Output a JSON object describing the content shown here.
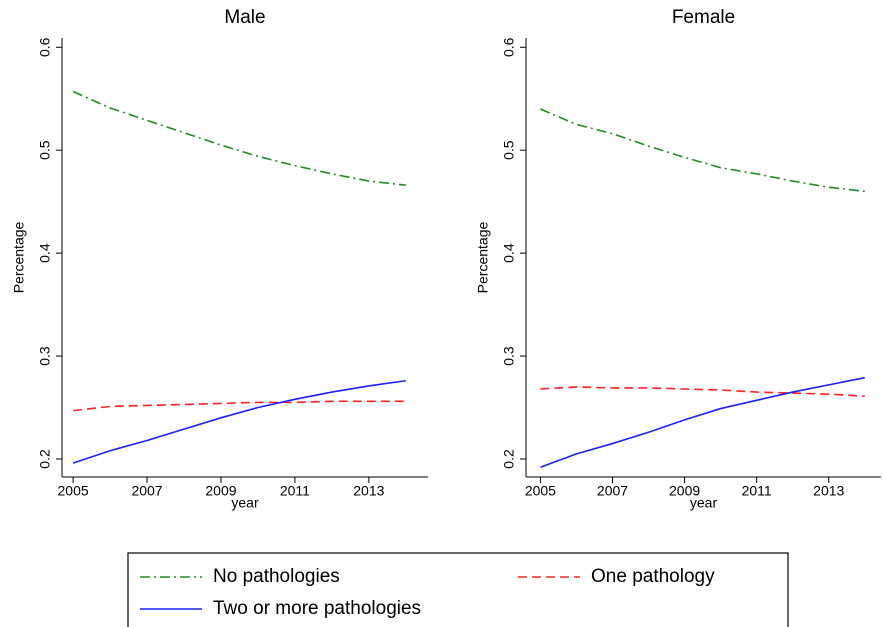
{
  "chart_data": [
    {
      "type": "line",
      "title": "Male",
      "xlabel": "year",
      "ylabel": "Percentage",
      "x": [
        2005,
        2006,
        2007,
        2008,
        2009,
        2010,
        2011,
        2012,
        2013,
        2014
      ],
      "xlim": [
        2004.7,
        2014.6
      ],
      "xticks": [
        2005,
        2007,
        2009,
        2011,
        2013
      ],
      "ylim": [
        0.1825,
        0.609
      ],
      "yticks": [
        0.2,
        0.3,
        0.4,
        0.5,
        0.6
      ],
      "series": [
        {
          "name": "No pathologies",
          "color": "#228b22",
          "dash": "dashdot",
          "values": [
            0.557,
            0.541,
            0.529,
            0.517,
            0.505,
            0.494,
            0.485,
            0.477,
            0.47,
            0.466
          ]
        },
        {
          "name": "One pathology",
          "color": "#ff2020",
          "dash": "dash",
          "values": [
            0.247,
            0.251,
            0.252,
            0.253,
            0.254,
            0.255,
            0.255,
            0.256,
            0.256,
            0.256
          ]
        },
        {
          "name": "Two or more pathologies",
          "color": "#1f1fff",
          "dash": "solid",
          "values": [
            0.196,
            0.208,
            0.218,
            0.229,
            0.24,
            0.25,
            0.258,
            0.265,
            0.271,
            0.276
          ]
        }
      ]
    },
    {
      "type": "line",
      "title": "Female",
      "xlabel": "year",
      "ylabel": "Percentage",
      "x": [
        2005,
        2006,
        2007,
        2008,
        2009,
        2010,
        2011,
        2012,
        2013,
        2014
      ],
      "xlim": [
        2004.6,
        2014.45
      ],
      "xticks": [
        2005,
        2007,
        2009,
        2011,
        2013
      ],
      "ylim": [
        0.1825,
        0.609
      ],
      "yticks": [
        0.2,
        0.3,
        0.4,
        0.5,
        0.6
      ],
      "series": [
        {
          "color": "#228b22",
          "dash": "dashdot",
          "values": [
            0.54,
            0.525,
            0.516,
            0.504,
            0.493,
            0.483,
            0.477,
            0.47,
            0.464,
            0.46
          ]
        },
        {
          "color": "#ff2020",
          "dash": "dash",
          "values": [
            0.268,
            0.27,
            0.269,
            0.269,
            0.268,
            0.267,
            0.265,
            0.264,
            0.263,
            0.261
          ]
        },
        {
          "color": "#1f1fff",
          "dash": "solid",
          "values": [
            0.192,
            0.205,
            0.215,
            0.226,
            0.238,
            0.249,
            0.257,
            0.265,
            0.272,
            0.279
          ]
        }
      ]
    }
  ]
}
